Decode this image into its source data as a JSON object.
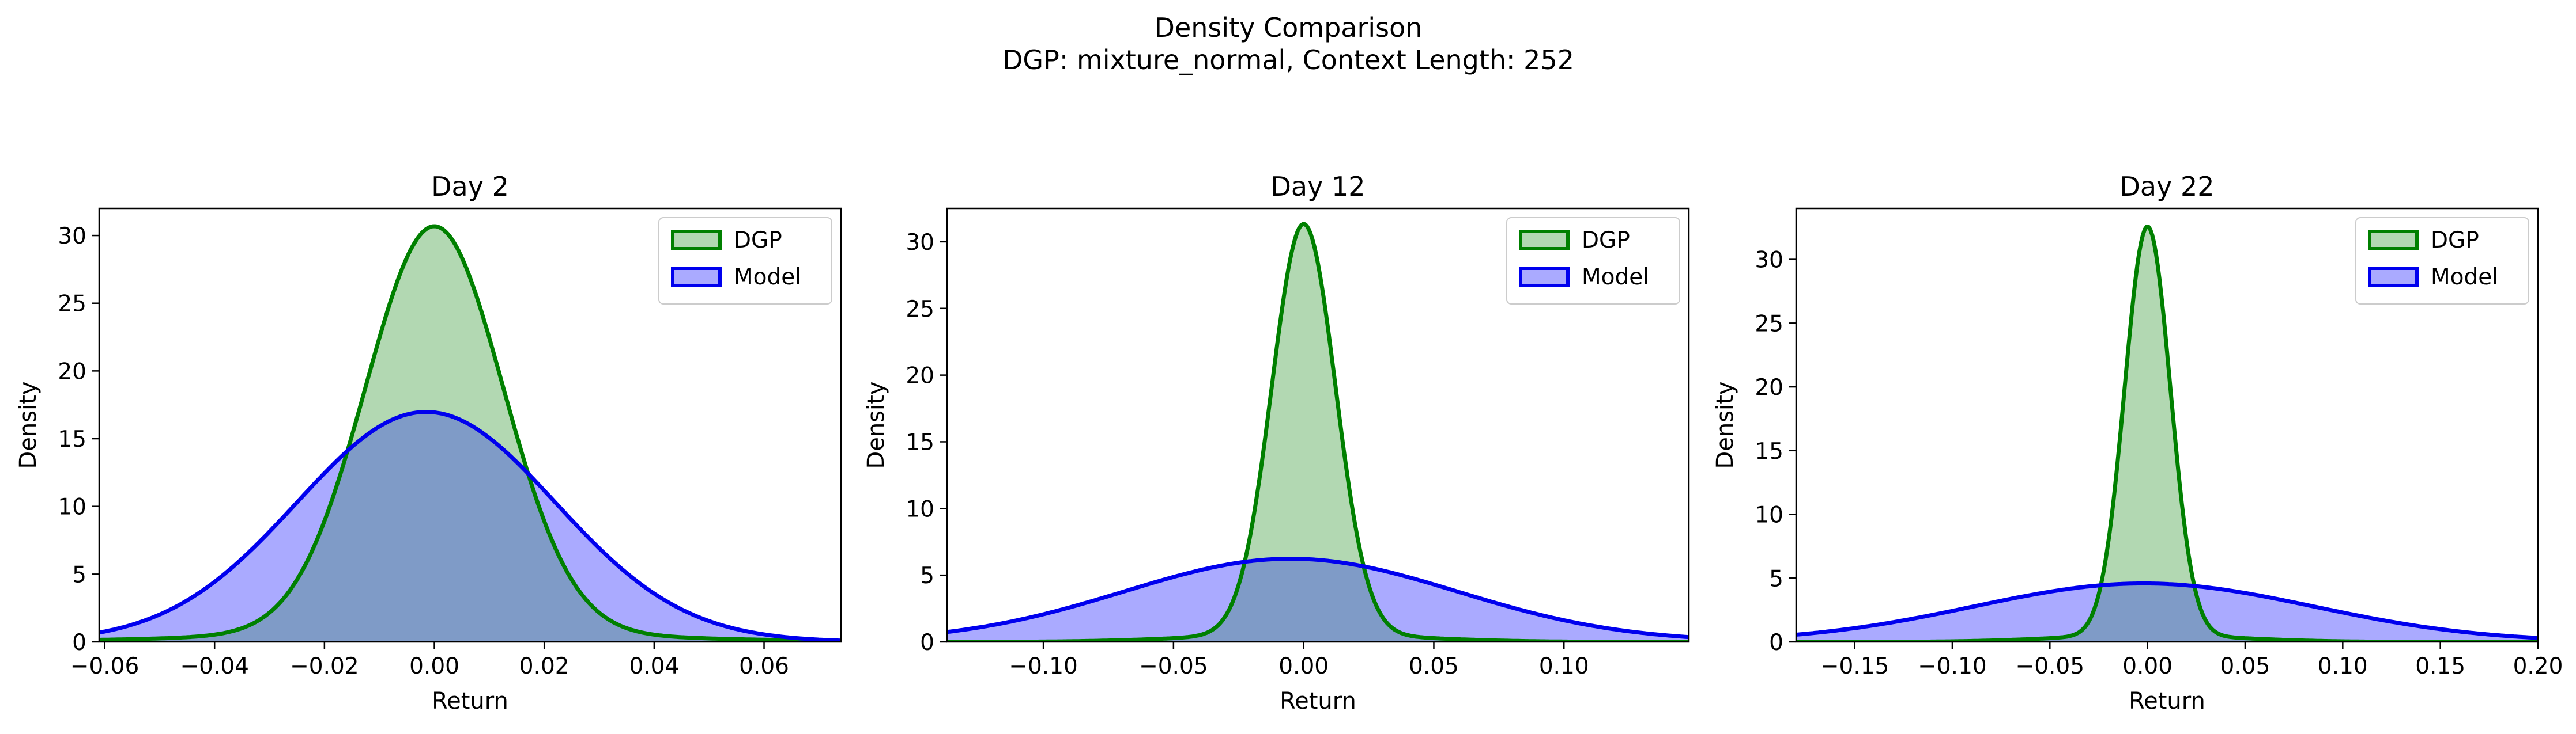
{
  "figure": {
    "title_line1": "Density Comparison",
    "title_line2": "DGP: mixture_normal, Context Length: 252"
  },
  "colors": {
    "dgp_line": "#008000",
    "dgp_fill": "#b2d8b2",
    "model_line": "#0000ee",
    "model_fill": "#aaaaff",
    "overlap_fill": "#7f9bc7"
  },
  "chart_data": [
    {
      "type": "area",
      "title": "Day 2",
      "xlabel": "Return",
      "ylabel": "Density",
      "xlim": [
        -0.061,
        0.074
      ],
      "ylim": [
        0,
        32
      ],
      "xticks": [
        -0.06,
        -0.04,
        -0.02,
        0.0,
        0.02,
        0.04,
        0.06
      ],
      "xtick_labels": [
        "−0.06",
        "−0.04",
        "−0.02",
        "0.00",
        "0.02",
        "0.04",
        "0.06"
      ],
      "yticks": [
        0,
        5,
        10,
        15,
        20,
        25,
        30
      ],
      "grid": false,
      "legend_position": "top-right",
      "series": [
        {
          "name": "DGP",
          "type": "mixture",
          "components": [
            [
              0.94,
              0.0,
              0.0125
            ],
            [
              0.06,
              0.0,
              0.035
            ]
          ]
        },
        {
          "name": "Model",
          "type": "mixture",
          "components": [
            [
              1.0,
              -0.0015,
              0.0235
            ]
          ]
        }
      ]
    },
    {
      "type": "area",
      "title": "Day 12",
      "xlabel": "Return",
      "ylabel": "Density",
      "xlim": [
        -0.137,
        0.148
      ],
      "ylim": [
        0,
        32.5
      ],
      "xticks": [
        -0.1,
        -0.05,
        0.0,
        0.05,
        0.1
      ],
      "xtick_labels": [
        "−0.10",
        "−0.05",
        "0.00",
        "0.05",
        "0.10"
      ],
      "yticks": [
        0,
        5,
        10,
        15,
        20,
        25,
        30
      ],
      "grid": false,
      "legend_position": "top-right",
      "series": [
        {
          "name": "DGP",
          "type": "mixture",
          "components": [
            [
              0.94,
              0.0,
              0.0122
            ],
            [
              0.06,
              0.0,
              0.04
            ]
          ]
        },
        {
          "name": "Model",
          "type": "mixture",
          "components": [
            [
              1.0,
              -0.005,
              0.064
            ]
          ]
        }
      ]
    },
    {
      "type": "area",
      "title": "Day 22",
      "xlabel": "Return",
      "ylabel": "Density",
      "xlim": [
        -0.18,
        0.2
      ],
      "ylim": [
        0,
        34
      ],
      "xticks": [
        -0.15,
        -0.1,
        -0.05,
        0.0,
        0.05,
        0.1,
        0.15,
        0.2
      ],
      "xtick_labels": [
        "−0.15",
        "−0.10",
        "−0.05",
        "0.00",
        "0.05",
        "0.10",
        "0.15",
        "0.20"
      ],
      "yticks": [
        0,
        5,
        10,
        15,
        20,
        25,
        30
      ],
      "grid": false,
      "legend_position": "top-right",
      "series": [
        {
          "name": "DGP",
          "type": "mixture",
          "components": [
            [
              0.94,
              0.0,
              0.0117
            ],
            [
              0.06,
              0.0,
              0.045
            ]
          ]
        },
        {
          "name": "Model",
          "type": "mixture",
          "components": [
            [
              1.0,
              -0.002,
              0.087
            ]
          ]
        }
      ]
    }
  ]
}
